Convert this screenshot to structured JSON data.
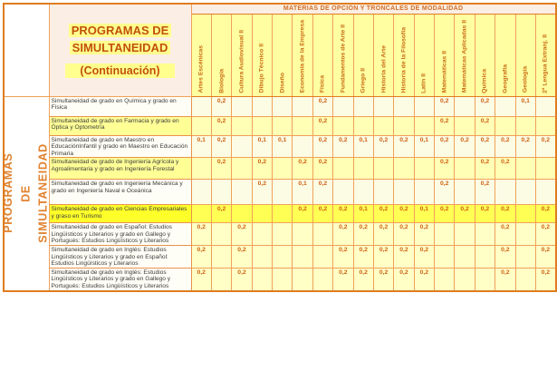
{
  "title_block": {
    "line1": "PROGRAMAS DE",
    "line2": "SIMULTANEIDAD",
    "subtitle": "(Continuación)"
  },
  "left_panel": {
    "vertical_title": "PROGRAMAS DE\nSIMULTANEIDAD"
  },
  "header_band": "MATERIAS DE OPCIÓN Y TRONCALES DE MODALIDAD",
  "table": {
    "columns": [
      "Artes Escénicas",
      "Biología",
      "Cultura Audiovisual II",
      "Dibujo Técnico II",
      "Diseño",
      "Economía de la Empresa",
      "Física",
      "Fundamentos de Arte II",
      "Griego II",
      "Historia del Arte",
      "Historia de la Filosofía",
      "Latín II",
      "Matemáticas II",
      "Matemáticas Aplicadas II",
      "Química",
      "Geografía",
      "Geología",
      "2ª Lengua Extranj. II"
    ],
    "rows": [
      {
        "label": "Simultaneidad de grado en Química y grado en Física",
        "highlight": "none",
        "values": [
          "",
          "0,2",
          "",
          "",
          "",
          "",
          "0,2",
          "",
          "",
          "",
          "",
          "",
          "0,2",
          "",
          "0,2",
          "",
          "0,1",
          ""
        ]
      },
      {
        "label": "Simultaneidad de grado en Farmacia y grado en Óptica y Optometría",
        "highlight": "yellow",
        "values": [
          "",
          "0,2",
          "",
          "",
          "",
          "",
          "0,2",
          "",
          "",
          "",
          "",
          "",
          "0,2",
          "",
          "0,2",
          "",
          "",
          ""
        ]
      },
      {
        "label": "Simultaneidad de grado en Maestro en EducaciónInfantil y grado en Maestro en Educación Primaria",
        "highlight": "none",
        "values": [
          "0,1",
          "0,2",
          "",
          "0,1",
          "0,1",
          "",
          "0,2",
          "0,2",
          "0,1",
          "0,2",
          "0,2",
          "0,1",
          "0,2",
          "0,2",
          "0,2",
          "0,2",
          "0,2",
          "0,2"
        ]
      },
      {
        "label": "Simultaneidad de grado de Ingeniería Agrícola y Agroalimentaria y grado en Ingeniería Forestal",
        "highlight": "yellow",
        "values": [
          "",
          "0,2",
          "",
          "0,2",
          "",
          "0,2",
          "0,2",
          "",
          "",
          "",
          "",
          "",
          "0,2",
          "",
          "0,2",
          "0,2",
          "",
          ""
        ]
      },
      {
        "label": "Simultaneidad de grado en Ingeniería Mecánica y grado en Ingeniería Naval e Oceánica",
        "highlight": "none",
        "values": [
          "",
          "",
          "",
          "0,2",
          "",
          "0,1",
          "0,2",
          "",
          "",
          "",
          "",
          "",
          "0,2",
          "",
          "0,2",
          "",
          "",
          ""
        ]
      },
      {
        "label": "Simultaneidad de grado en Ciencias Empresariales y graso en Turismo",
        "highlight": "bright",
        "values": [
          "",
          "0,2",
          "",
          "",
          "",
          "0,2",
          "0,2",
          "0,2",
          "0,1",
          "0,2",
          "0,2",
          "0,1",
          "0,2",
          "0,2",
          "0,2",
          "0,2",
          "",
          "0,2"
        ]
      },
      {
        "label": "Simultaneidad de grado en Español: Estudios Lingüísticos y Literarios y grado en Gallego y Portugués: Estudios Lingüísticos y Literarios",
        "highlight": "none",
        "values": [
          "0,2",
          "",
          "0,2",
          "",
          "",
          "",
          "",
          "0,2",
          "0,2",
          "0,2",
          "0,2",
          "0,2",
          "",
          "",
          "",
          "0,2",
          "",
          "0,2"
        ]
      },
      {
        "label": "Simultaneidad de grado en Inglés: Estudios Lingüísticos y Literarios y grado en Español: Estudios Lingüísticos y Literarios",
        "highlight": "none",
        "values": [
          "0,2",
          "",
          "0,2",
          "",
          "",
          "",
          "",
          "0,2",
          "0,2",
          "0,2",
          "0,2",
          "0,2",
          "",
          "",
          "",
          "0,2",
          "",
          "0,2"
        ]
      },
      {
        "label": "Simultaneidad de grado en Inglés: Estudios Lingüísticos y Literarios y grado en Gallego y Portugués: Estudios Lingüísticos y Literarios",
        "highlight": "none",
        "values": [
          "0,2",
          "",
          "0,2",
          "",
          "",
          "",
          "",
          "0,2",
          "0,2",
          "0,2",
          "0,2",
          "0,2",
          "",
          "",
          "",
          "0,2",
          "",
          "0,2"
        ]
      }
    ]
  },
  "colors": {
    "border_orange": "#e07c1f",
    "title_text_orange": "#c2500a",
    "value_text_orange": "#cf6115",
    "title_highlight_yellow": "#ffff8e",
    "row_highlight_yellow": "#ffff96",
    "row_highlight_bright": "#ffff29",
    "column_header_fill": "#ffffa2",
    "band_fill_pink": "#fbeee4"
  }
}
